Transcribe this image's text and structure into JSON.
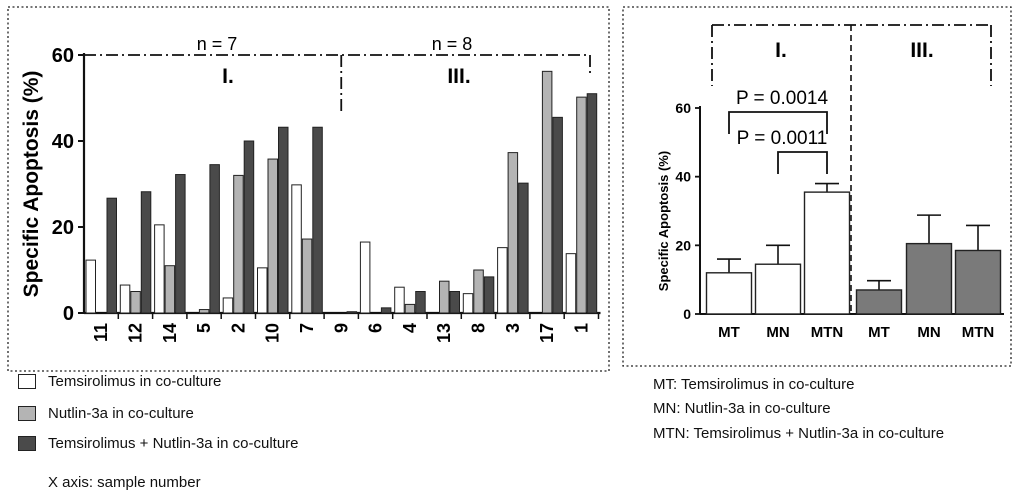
{
  "figure": {
    "legend": [
      {
        "label": "Temsirolimus in co-culture",
        "color": "#ffffff"
      },
      {
        "label": "Nutlin-3a in co-culture",
        "color": "#b4b4b4"
      },
      {
        "label": "Temsirolimus + Nutlin-3a  in co-culture",
        "color": "#4a4a4a"
      }
    ],
    "x_axis_note": "X axis: sample number",
    "abbreviations": [
      "MT: Temsirolimus in co-culture",
      "MN: Nutlin-3a in co-culture",
      "MTN: Temsirolimus + Nutlin-3a in co-culture"
    ]
  },
  "chart_data": [
    {
      "type": "bar",
      "ylabel": "Specific Apoptosis (%)",
      "xlabel": "",
      "ylim": [
        0,
        60
      ],
      "yticks": [
        0,
        20,
        40,
        60
      ],
      "grid": false,
      "categories": [
        "11",
        "12",
        "14",
        "5",
        "2",
        "10",
        "7",
        "9",
        "6",
        "4",
        "13",
        "8",
        "3",
        "17",
        "1"
      ],
      "series": [
        {
          "name": "Temsirolimus in co-culture",
          "color": "#ffffff",
          "values": [
            12.3,
            6.5,
            20.5,
            0,
            3.5,
            10.5,
            29.8,
            0,
            16.5,
            6,
            0,
            4.5,
            15.2,
            0,
            13.8
          ]
        },
        {
          "name": "Nutlin-3a in co-culture",
          "color": "#b4b4b4",
          "values": [
            0,
            5,
            11,
            0.8,
            32,
            35.8,
            17.2,
            0,
            0,
            2,
            7.4,
            10,
            37.3,
            56.2,
            50.2
          ]
        },
        {
          "name": "Temsirolimus + Nutlin-3a  in co-culture",
          "color": "#4a4a4a",
          "values": [
            26.7,
            28.2,
            32.2,
            34.5,
            40,
            43.2,
            43.2,
            0.3,
            1.2,
            5,
            5,
            8.4,
            30.2,
            45.5,
            51
          ]
        }
      ],
      "groups": [
        {
          "label": "I.",
          "n_label": "n = 7",
          "categories": [
            "11",
            "12",
            "14",
            "5",
            "2",
            "10",
            "7"
          ]
        },
        {
          "label": "III.",
          "n_label": "n = 8",
          "categories": [
            "9",
            "6",
            "4",
            "13",
            "8",
            "3",
            "17",
            "1"
          ]
        }
      ],
      "legend_position": "below"
    },
    {
      "type": "bar",
      "ylabel": "Specific Apoptosis (%)",
      "xlabel": "",
      "ylim": [
        0,
        60
      ],
      "yticks": [
        0,
        20,
        40,
        60
      ],
      "grid": false,
      "categories": [
        "MT",
        "MN",
        "MTN",
        "MT",
        "MN",
        "MTN"
      ],
      "values": [
        12,
        14.5,
        35.5,
        7,
        20.5,
        18.5
      ],
      "errors": [
        4,
        5.5,
        2.5,
        2.7,
        8.3,
        7.3
      ],
      "colors": [
        "#ffffff",
        "#ffffff",
        "#ffffff",
        "#7a7a7a",
        "#7a7a7a",
        "#7a7a7a"
      ],
      "groups": [
        {
          "label": "I.",
          "categories": [
            "MT",
            "MN",
            "MTN"
          ]
        },
        {
          "label": "III.",
          "categories": [
            "MT",
            "MN",
            "MTN"
          ]
        }
      ],
      "annotations": [
        {
          "text": "P = 0.0014",
          "from": 0,
          "to": 2
        },
        {
          "text": "P = 0.0011",
          "from": 1,
          "to": 2
        }
      ]
    }
  ]
}
